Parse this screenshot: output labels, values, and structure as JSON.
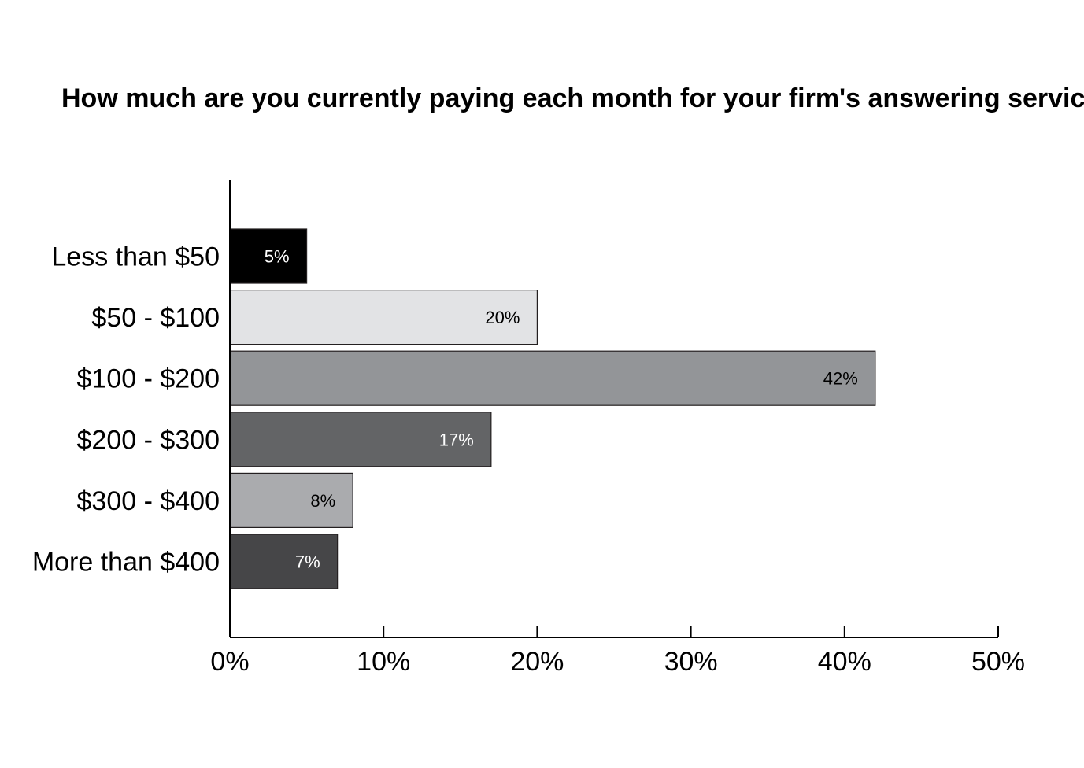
{
  "chart_data": {
    "type": "bar",
    "orientation": "horizontal",
    "title": "How much are you currently paying each month for your firm's answering services?",
    "categories": [
      "Less than $50",
      "$50 - $100",
      "$100 - $200",
      "$200 - $300",
      "$300 - $400",
      "More than $400"
    ],
    "values": [
      5,
      20,
      42,
      17,
      8,
      7
    ],
    "data_labels": [
      "5%",
      "20%",
      "42%",
      "17%",
      "8%",
      "7%"
    ],
    "bar_colors": [
      "#000000",
      "#e2e3e5",
      "#939598",
      "#636466",
      "#aaabae",
      "#464648"
    ],
    "label_colors": [
      "#ffffff",
      "#000000",
      "#000000",
      "#ffffff",
      "#000000",
      "#ffffff"
    ],
    "xlim": [
      0,
      50
    ],
    "x_ticks": [
      0,
      10,
      20,
      30,
      40,
      50
    ],
    "x_tick_labels": [
      "0%",
      "10%",
      "20%",
      "30%",
      "40%",
      "50%"
    ],
    "grid": false,
    "legend": "none"
  }
}
